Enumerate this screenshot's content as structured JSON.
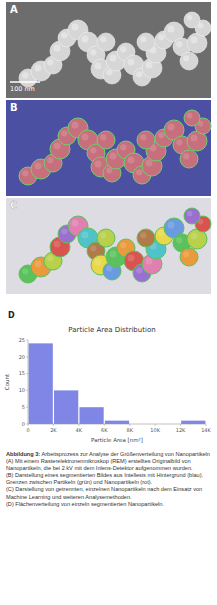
{
  "figure": {
    "panels": [
      {
        "label": "A",
        "scale_bar": "100 nm"
      },
      {
        "label": "B"
      },
      {
        "label": "C"
      }
    ],
    "chart_label": "D",
    "caption": {
      "label": "Abbildung 3:",
      "title": "Arbeitsprozess zur Analyse der Größenverteilung von Nanopartikeln",
      "items": [
        "(A) Mit einem Rasterelektronenmikroskop (REM) erstelltes Originalbild von Nanopartikeln, die bei 2 kV mit dem Inlens-Detektor aufgenommen wurden.",
        "(B) Darstellung eines segmentierten Bildes aus Intellesis mit Hintergrund (blau), Grenzen zwischen Partikeln (grün) und Nanopartikeln (rot).",
        "(C) Darstellung von getrennten, einzelnen Nanopartikeln nach dem Einsatz von Machine Learning und weiteren Analysemethoden.",
        "(D) Flächenverteilung von einzeln segmentierten Nanopartikeln."
      ]
    }
  },
  "chart_data": {
    "type": "histogram",
    "title": "Particle Area Distribution",
    "x_label": "Particle Area [nm²]",
    "y_label": "Count",
    "bins": [
      0,
      2000,
      4000,
      6000,
      8000,
      10000,
      12000,
      14000
    ],
    "values": [
      24,
      10,
      5,
      1,
      0,
      0,
      1
    ],
    "color": "#7f86e6",
    "xlim": [
      0,
      14000
    ],
    "xticks": [
      0,
      {
        "value": 2000,
        "label": "2K"
      },
      {
        "value": 4000,
        "label": "4K"
      },
      {
        "value": 6000,
        "label": "6K"
      },
      {
        "value": 8000,
        "label": "8K"
      },
      {
        "value": 10000,
        "label": "10K"
      },
      {
        "value": 12000,
        "label": "12K"
      },
      {
        "value": 14000,
        "label": "14K"
      }
    ],
    "ylim": [
      0,
      25
    ],
    "yticks": [
      0,
      5,
      10,
      15,
      20,
      25
    ],
    "grid": false
  }
}
